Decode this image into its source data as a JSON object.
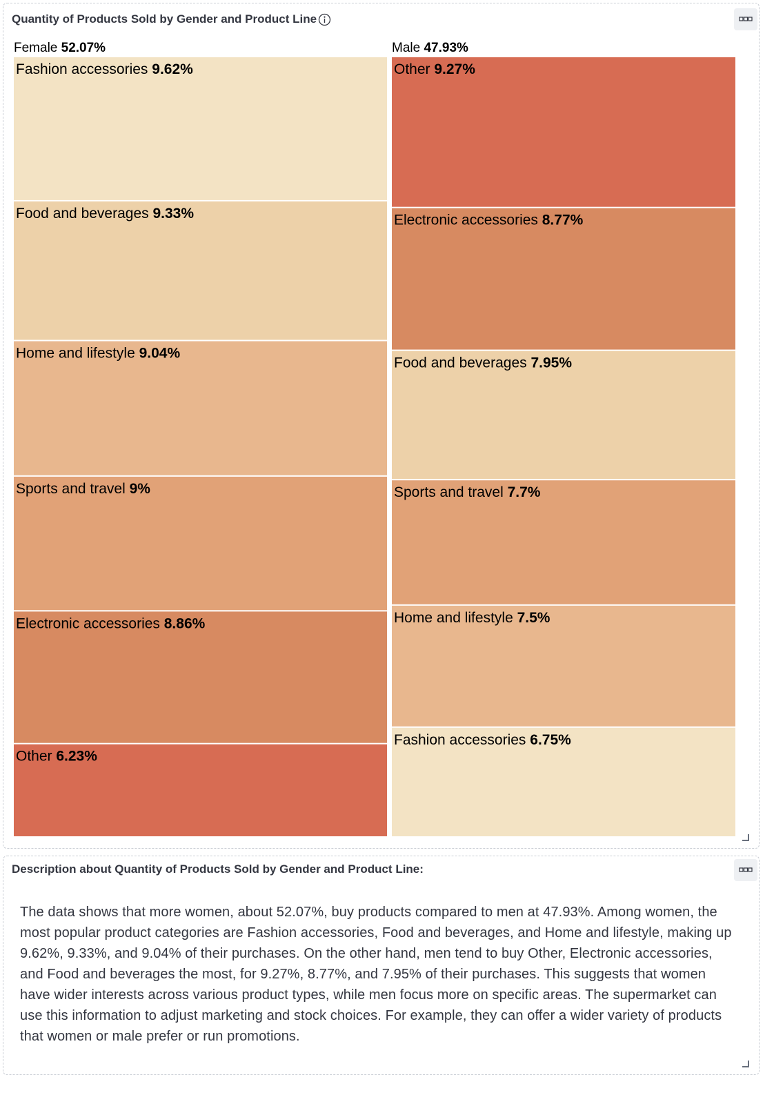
{
  "chart_panel": {
    "title": "Quantity of Products Sold by Gender and Product Line"
  },
  "description_panel": {
    "title": "Description about Quantity of Products Sold by Gender and Product Line:",
    "text": "The data shows that more women, about 52.07%, buy products compared to men at 47.93%. Among women, the most popular product categories are Fashion accessories, Food and beverages, and Home and lifestyle, making up 9.62%, 9.33%, and 9.04% of their purchases. On the other hand, men tend to buy Other, Electronic accessories, and Food and beverages the most, for 9.27%, 8.77%, and 7.95% of their purchases. This suggests that women have wider interests across various product types, while men focus more on specific areas. The supermarket can use this information to adjust marketing and stock choices. For example, they can offer a wider variety of products that women or male prefer or run promotions."
  },
  "icons": {
    "info": "info-circle-icon",
    "options": "more-options-icon",
    "resize": "resize-corner-icon"
  },
  "colors": {
    "Fashion accessories": "#f3e3c4",
    "Food and beverages": "#edd1a9",
    "Home and lifestyle": "#e8b78e",
    "Sports and travel": "#e1a277",
    "Electronic accessories": "#d78a61",
    "Other": "#d76c53"
  },
  "chart_data": {
    "type": "treemap",
    "groups": [
      {
        "name": "Female",
        "value_label": "52.07%",
        "value": 52.07,
        "items": [
          {
            "name": "Fashion accessories",
            "value_label": "9.62%",
            "value": 9.62
          },
          {
            "name": "Food and beverages",
            "value_label": "9.33%",
            "value": 9.33
          },
          {
            "name": "Home and lifestyle",
            "value_label": "9.04%",
            "value": 9.04
          },
          {
            "name": "Sports and travel",
            "value_label": "9%",
            "value": 9.0
          },
          {
            "name": "Electronic accessories",
            "value_label": "8.86%",
            "value": 8.86
          },
          {
            "name": "Other",
            "value_label": "6.23%",
            "value": 6.23
          }
        ]
      },
      {
        "name": "Male",
        "value_label": "47.93%",
        "value": 47.93,
        "items": [
          {
            "name": "Other",
            "value_label": "9.27%",
            "value": 9.27
          },
          {
            "name": "Electronic accessories",
            "value_label": "8.77%",
            "value": 8.77
          },
          {
            "name": "Food and beverages",
            "value_label": "7.95%",
            "value": 7.95
          },
          {
            "name": "Sports and travel",
            "value_label": "7.7%",
            "value": 7.7
          },
          {
            "name": "Home and lifestyle",
            "value_label": "7.5%",
            "value": 7.5
          },
          {
            "name": "Fashion accessories",
            "value_label": "6.75%",
            "value": 6.75
          }
        ]
      }
    ]
  }
}
